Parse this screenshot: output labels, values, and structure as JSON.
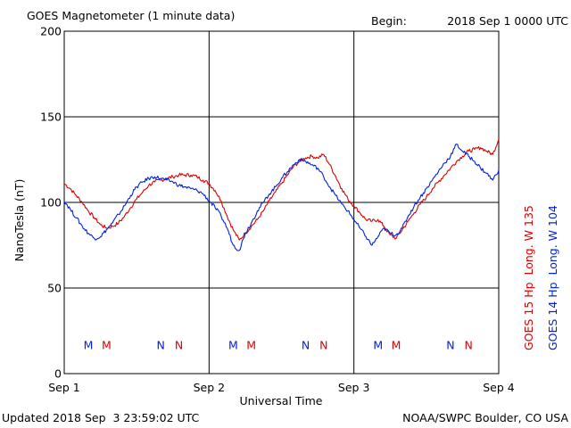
{
  "header": {
    "title": "GOES Magnetometer (1 minute data)",
    "begin_label": "Begin:",
    "begin_value": "2018 Sep 1 0000 UTC"
  },
  "footer": {
    "updated": "Updated 2018 Sep  3 23:59:02 UTC",
    "source": "NOAA/SWPC Boulder, CO USA"
  },
  "colors": {
    "goes15": "#dd0000",
    "goes14": "#0022dd",
    "grid": "#000000"
  },
  "chart_data": {
    "type": "line",
    "title": "GOES Magnetometer (1 minute data)",
    "xlabel": "Universal Time",
    "ylabel": "NanoTesla (nT)",
    "xlim": [
      0,
      72
    ],
    "ylim": [
      0,
      200
    ],
    "x_unit": "hours since 2018 Sep 1 0000 UTC",
    "xticks": [
      {
        "x": 0,
        "label": "Sep 1"
      },
      {
        "x": 24,
        "label": "Sep 2"
      },
      {
        "x": 48,
        "label": "Sep 3"
      },
      {
        "x": 72,
        "label": "Sep 4"
      }
    ],
    "yticks": [
      0,
      50,
      100,
      150,
      200
    ],
    "grid": true,
    "legend_position": "right",
    "series": [
      {
        "name": "GOES 15 Hp  Long. W 135",
        "color": "#dd0000",
        "x": [
          0,
          1,
          2,
          3,
          4,
          5,
          6,
          7,
          8,
          9,
          10,
          11,
          12,
          13,
          14,
          15,
          16,
          17,
          18,
          19,
          20,
          21,
          22,
          23,
          24,
          25,
          26,
          27,
          28,
          29,
          30,
          31,
          32,
          33,
          34,
          35,
          36,
          37,
          38,
          39,
          40,
          41,
          42,
          43,
          44,
          45,
          46,
          47,
          48,
          49,
          50,
          51,
          52,
          53,
          54,
          55,
          56,
          57,
          58,
          59,
          60,
          61,
          62,
          63,
          64,
          65,
          66,
          67,
          68,
          69,
          70,
          71,
          72
        ],
        "values": [
          111,
          108,
          104,
          100,
          95,
          91,
          87,
          85,
          86,
          88,
          92,
          97,
          102,
          106,
          110,
          112,
          113,
          114,
          115,
          116,
          116,
          116,
          115,
          113,
          111,
          107,
          101,
          92,
          84,
          78,
          82,
          86,
          90,
          95,
          101,
          106,
          111,
          116,
          121,
          124,
          126,
          127,
          126,
          128,
          122,
          115,
          108,
          102,
          98,
          94,
          90,
          89,
          90,
          86,
          81,
          79,
          84,
          89,
          94,
          99,
          103,
          108,
          112,
          116,
          120,
          124,
          127,
          130,
          131,
          132,
          130,
          128,
          137
        ]
      },
      {
        "name": "GOES 14 Hp  Long. W 104",
        "color": "#0022dd",
        "x": [
          0,
          1,
          2,
          3,
          4,
          5,
          6,
          7,
          8,
          9,
          10,
          11,
          12,
          13,
          14,
          15,
          16,
          17,
          18,
          19,
          20,
          21,
          22,
          23,
          24,
          25,
          26,
          27,
          28,
          29,
          30,
          31,
          32,
          33,
          34,
          35,
          36,
          37,
          38,
          39,
          40,
          41,
          42,
          43,
          44,
          45,
          46,
          47,
          48,
          49,
          50,
          51,
          52,
          53,
          54,
          55,
          56,
          57,
          58,
          59,
          60,
          61,
          62,
          63,
          64,
          65,
          66,
          67,
          68,
          69,
          70,
          71,
          72
        ],
        "values": [
          101,
          96,
          91,
          86,
          82,
          79,
          80,
          84,
          88,
          93,
          98,
          104,
          109,
          112,
          114,
          115,
          114,
          113,
          112,
          110,
          109,
          108,
          107,
          105,
          101,
          97,
          92,
          85,
          75,
          72,
          82,
          88,
          95,
          100,
          105,
          109,
          114,
          118,
          122,
          125,
          124,
          122,
          120,
          115,
          109,
          104,
          99,
          95,
          90,
          85,
          80,
          75,
          80,
          85,
          82,
          81,
          85,
          92,
          98,
          103,
          108,
          113,
          118,
          123,
          127,
          134,
          130,
          127,
          124,
          120,
          117,
          113,
          119
        ]
      }
    ],
    "event_markers": {
      "description": "",
      "y": 17,
      "markers": [
        {
          "x": 4.0,
          "label": "M",
          "series": "GOES 14 Hp  Long. W 104"
        },
        {
          "x": 7.0,
          "label": "M",
          "series": "GOES 15 Hp  Long. W 135"
        },
        {
          "x": 16.0,
          "label": "N",
          "series": "GOES 14 Hp  Long. W 104"
        },
        {
          "x": 19.0,
          "label": "N",
          "series": "GOES 15 Hp  Long. W 135"
        },
        {
          "x": 28.0,
          "label": "M",
          "series": "GOES 14 Hp  Long. W 104"
        },
        {
          "x": 31.0,
          "label": "M",
          "series": "GOES 15 Hp  Long. W 135"
        },
        {
          "x": 40.0,
          "label": "N",
          "series": "GOES 14 Hp  Long. W 104"
        },
        {
          "x": 43.0,
          "label": "N",
          "series": "GOES 15 Hp  Long. W 135"
        },
        {
          "x": 52.0,
          "label": "M",
          "series": "GOES 14 Hp  Long. W 104"
        },
        {
          "x": 55.0,
          "label": "M",
          "series": "GOES 15 Hp  Long. W 135"
        },
        {
          "x": 64.0,
          "label": "N",
          "series": "GOES 14 Hp  Long. W 104"
        },
        {
          "x": 67.0,
          "label": "N",
          "series": "GOES 15 Hp  Long. W 135"
        }
      ]
    }
  }
}
